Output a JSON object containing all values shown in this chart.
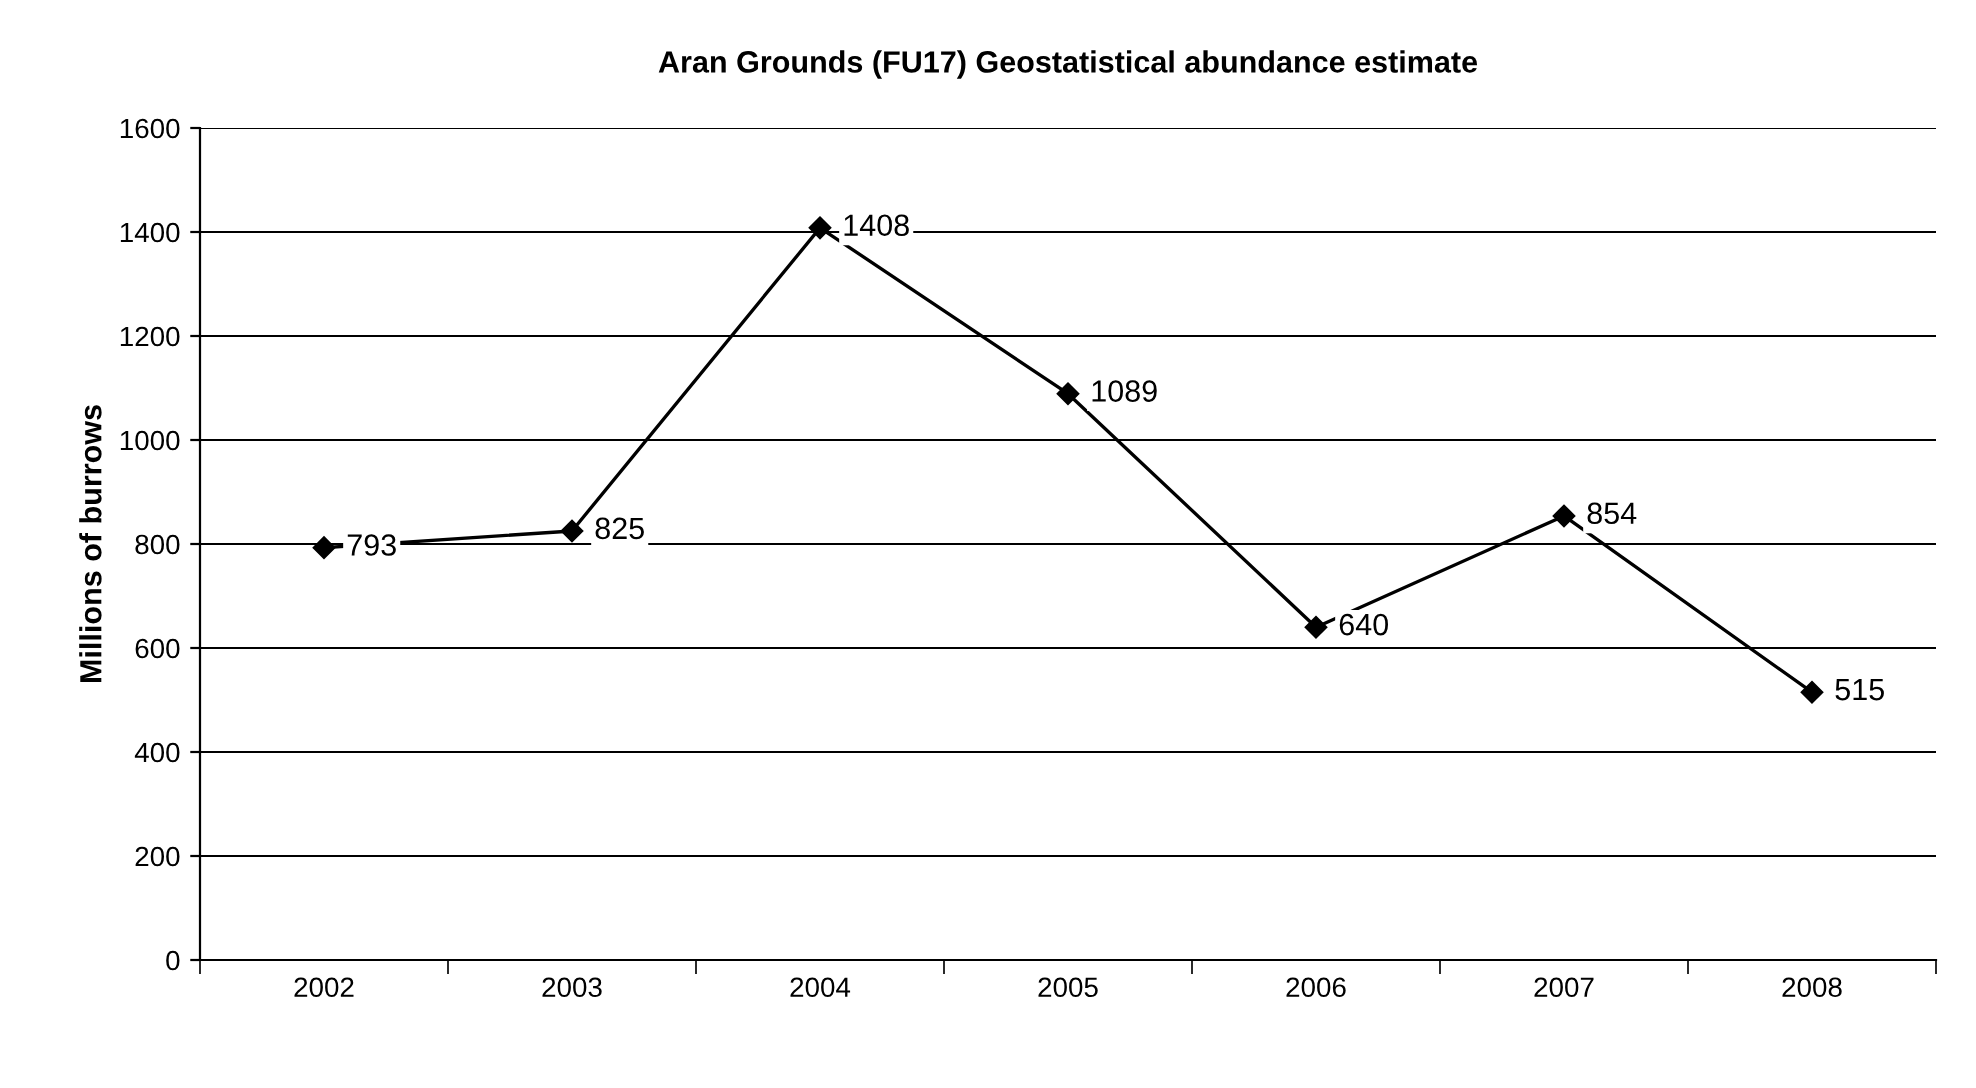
{
  "chart_data": {
    "type": "line",
    "title": "Aran Grounds (FU17) Geostatistical abundance estimate",
    "ylabel": "Millions of burrows",
    "categories": [
      "2002",
      "2003",
      "2004",
      "2005",
      "2006",
      "2007",
      "2008"
    ],
    "series": [
      {
        "color": "#000000",
        "values": [
          793,
          825,
          1408,
          1089,
          640,
          854,
          515
        ]
      }
    ],
    "ylim": [
      0,
      1600
    ],
    "yticks": [
      0,
      200,
      400,
      600,
      800,
      1000,
      1200,
      1400,
      1600
    ],
    "grid": "y",
    "marker": "diamond",
    "line_style": "solid",
    "data_labels": true
  }
}
